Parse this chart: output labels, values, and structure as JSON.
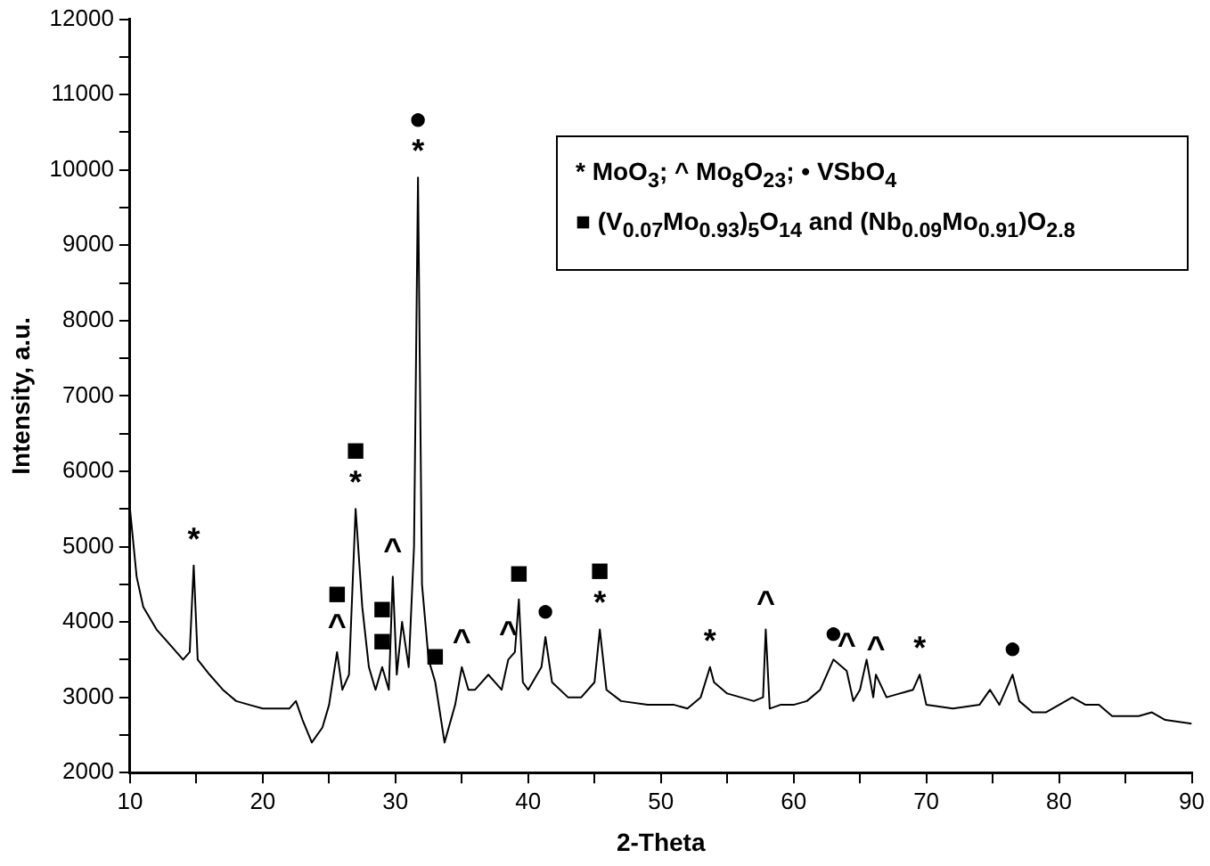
{
  "chart_data": {
    "type": "line",
    "xlabel": "2-Theta",
    "ylabel": "Intensity, a.u.",
    "color": "#000000",
    "marker": "none",
    "line_style": "solid",
    "grid": false,
    "legend": false,
    "xlim": [
      10,
      90
    ],
    "xticks": [
      10,
      {
        "value": 15,
        "label": null
      },
      20,
      {
        "value": 25,
        "label": null
      },
      30,
      {
        "value": 35,
        "label": null
      },
      40,
      {
        "value": 45,
        "label": null
      },
      50,
      {
        "value": 55,
        "label": null
      },
      60,
      {
        "value": 65,
        "label": null
      },
      70,
      {
        "value": 75,
        "label": null
      },
      80,
      {
        "value": 85,
        "label": null
      },
      90
    ],
    "ylim": [
      2000,
      12000
    ],
    "yticks": [
      2000,
      {
        "value": 2500,
        "label": null
      },
      3000,
      {
        "value": 3500,
        "label": null
      },
      4000,
      {
        "value": 4500,
        "label": null
      },
      5000,
      {
        "value": 5500,
        "label": null
      },
      6000,
      {
        "value": 6500,
        "label": null
      },
      7000,
      {
        "value": 7500,
        "label": null
      },
      8000,
      {
        "value": 8500,
        "label": null
      },
      9000,
      {
        "value": 9500,
        "label": null
      },
      10000,
      {
        "value": 10500,
        "label": null
      },
      11000,
      {
        "value": 11500,
        "label": null
      },
      12000
    ],
    "x": [
      10,
      10.5,
      11,
      12,
      13,
      14,
      14.5,
      14.8,
      15.1,
      16,
      17,
      18,
      19,
      20,
      21,
      22,
      22.5,
      23,
      23.7,
      24.5,
      25,
      25.6,
      26,
      26.5,
      27,
      27.5,
      28,
      28.5,
      29,
      29.5,
      29.8,
      30.1,
      30.5,
      31,
      31.4,
      31.7,
      32,
      32.5,
      33,
      33.7,
      34.5,
      35,
      35.5,
      36,
      37,
      38,
      38.5,
      39,
      39.3,
      39.6,
      40,
      41,
      41.3,
      41.8,
      43,
      44,
      45,
      45.4,
      45.9,
      47,
      49,
      51,
      52,
      53,
      53.7,
      54,
      55,
      57,
      57.7,
      57.9,
      58.2,
      59,
      60,
      61,
      62,
      63,
      64,
      64.5,
      65,
      65.5,
      66,
      66.2,
      67,
      68,
      69,
      69.5,
      70,
      72,
      74,
      74.8,
      75.5,
      76.5,
      77,
      78,
      79,
      81,
      82,
      83,
      84,
      86,
      87,
      88,
      90
    ],
    "values": [
      5500,
      4600,
      4200,
      3900,
      3700,
      3500,
      3600,
      4750,
      3500,
      3300,
      3100,
      2950,
      2900,
      2850,
      2850,
      2850,
      2950,
      2700,
      2400,
      2600,
      2900,
      3600,
      3100,
      3300,
      5500,
      4200,
      3400,
      3100,
      3400,
      3100,
      4600,
      3300,
      4000,
      3400,
      5000,
      9900,
      4500,
      3500,
      3200,
      2400,
      2900,
      3400,
      3100,
      3100,
      3300,
      3100,
      3500,
      3600,
      4300,
      3200,
      3100,
      3400,
      3800,
      3200,
      3000,
      3000,
      3200,
      3900,
      3100,
      2950,
      2900,
      2900,
      2850,
      3000,
      3400,
      3200,
      3050,
      2950,
      3000,
      3900,
      2850,
      2900,
      2900,
      2950,
      3100,
      3500,
      3350,
      2950,
      3100,
      3500,
      3000,
      3300,
      3000,
      3050,
      3100,
      3300,
      2900,
      2850,
      2900,
      3100,
      2900,
      3300,
      2950,
      2800,
      2800,
      3000,
      2900,
      2900,
      2750,
      2750,
      2800,
      2700,
      2650
    ],
    "annotations": [
      "* MoO$_{3}$; ^  Mo$_{8}$O$_{23}$; • VSbO$_{4}$",
      "■ (V$_{0.07}$Mo$_{0.93}$)$_{5}$O$_{14}$ and (Nb$_{0.09}$Mo$_{0.91}$)O$_{2.8}$",
      {
        "text": "*",
        "x": 14.8,
        "y": 4750
      },
      {
        "text": "^",
        "x": 25.6,
        "y": 3600
      },
      {
        "text": "■",
        "x": 25.6,
        "y": 3600
      },
      {
        "text": "*",
        "x": 27,
        "y": 5500
      },
      {
        "text": "■",
        "x": 27,
        "y": 5500
      },
      {
        "text": "■",
        "x": 29,
        "y": 3400
      },
      {
        "text": "■",
        "x": 29,
        "y": 3400
      },
      {
        "text": "^",
        "x": 29.8,
        "y": 4600
      },
      {
        "text": "*",
        "x": 31.7,
        "y": 9900
      },
      {
        "text": "●",
        "x": 31.7,
        "y": 9900
      },
      {
        "text": "■",
        "x": 33,
        "y": 3200
      },
      {
        "text": "^",
        "x": 35,
        "y": 3400
      },
      {
        "text": "^",
        "x": 38.5,
        "y": 3500
      },
      {
        "text": "■",
        "x": 39.3,
        "y": 4300
      },
      {
        "text": "●",
        "x": 41.3,
        "y": 3800
      },
      {
        "text": "*",
        "x": 45.4,
        "y": 3900
      },
      {
        "text": "■",
        "x": 45.4,
        "y": 3900
      },
      {
        "text": "*",
        "x": 53.7,
        "y": 3400
      },
      {
        "text": "^",
        "x": 57.9,
        "y": 3900
      },
      {
        "text": "●",
        "x": 63,
        "y": 3500
      },
      {
        "text": "^",
        "x": 64,
        "y": 3350
      },
      {
        "text": "^",
        "x": 66.2,
        "y": 3300
      },
      {
        "text": "*",
        "x": 69.5,
        "y": 3300
      },
      {
        "text": "●",
        "x": 76.5,
        "y": 3300
      }
    ]
  }
}
